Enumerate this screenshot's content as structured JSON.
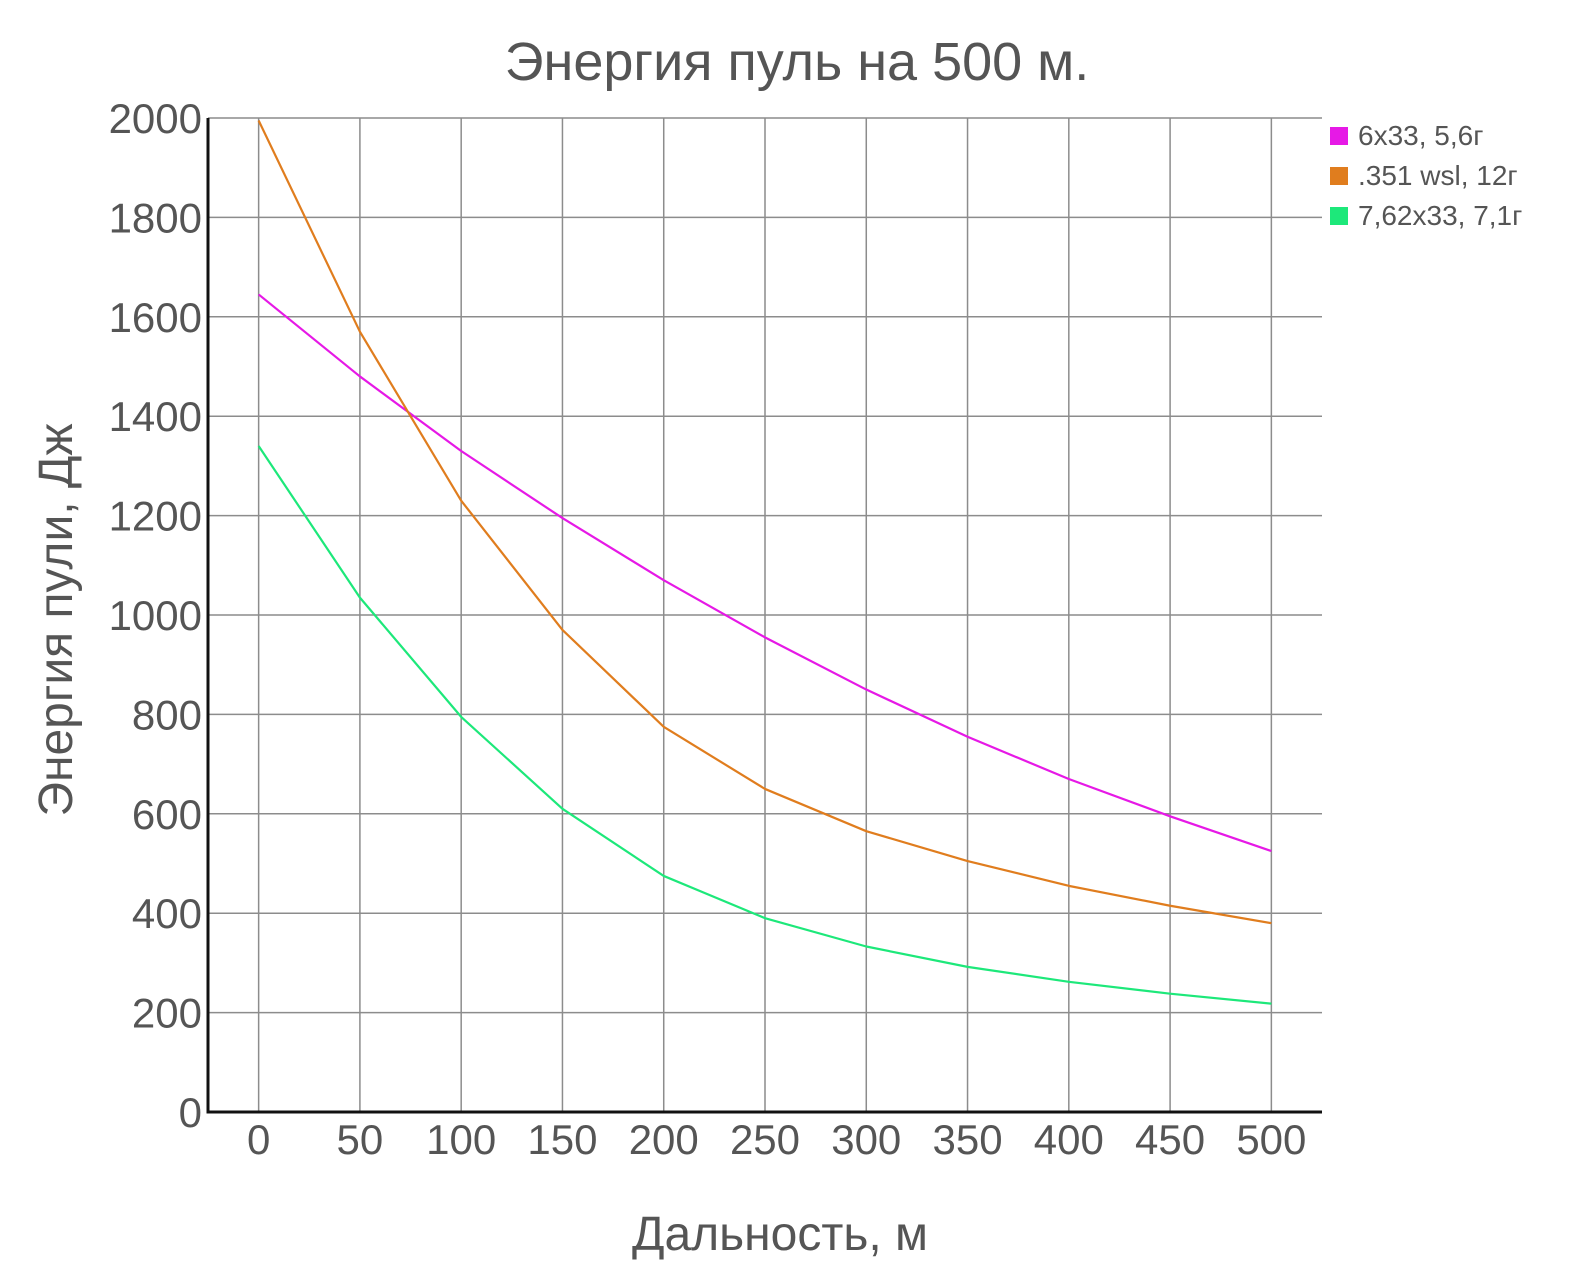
{
  "chart_data": {
    "type": "line",
    "title": "Энергия пуль на 500 м.",
    "xlabel": "Дальность, м",
    "ylabel": "Энергия пули, Дж",
    "x": [
      0,
      50,
      100,
      150,
      200,
      250,
      300,
      350,
      400,
      450,
      500
    ],
    "x_tick_labels": [
      "0",
      "50",
      "100",
      "150",
      "200",
      "250",
      "300",
      "350",
      "400",
      "450",
      "500"
    ],
    "y_ticks": [
      0,
      200,
      400,
      600,
      800,
      1000,
      1200,
      1400,
      1600,
      1800,
      2000
    ],
    "y_tick_labels": [
      "0",
      "200",
      "400",
      "600",
      "800",
      "1000",
      "1200",
      "1400",
      "1600",
      "1800",
      "2000"
    ],
    "xlim": [
      -25,
      525
    ],
    "ylim": [
      0,
      2000
    ],
    "grid": true,
    "legend_position": "top-right",
    "series": [
      {
        "name": "6x33, 5,6г",
        "color": "#e619e6",
        "values": [
          1645,
          1480,
          1330,
          1195,
          1070,
          955,
          850,
          755,
          670,
          595,
          525
        ]
      },
      {
        "name": ".351 wsl, 12г",
        "color": "#e07d1e",
        "values": [
          1995,
          1570,
          1230,
          970,
          775,
          650,
          565,
          505,
          455,
          415,
          380
        ]
      },
      {
        "name": "7,62x33, 7,1г",
        "color": "#1de87a",
        "values": [
          1340,
          1035,
          795,
          610,
          475,
          390,
          333,
          292,
          262,
          238,
          218
        ]
      }
    ]
  }
}
